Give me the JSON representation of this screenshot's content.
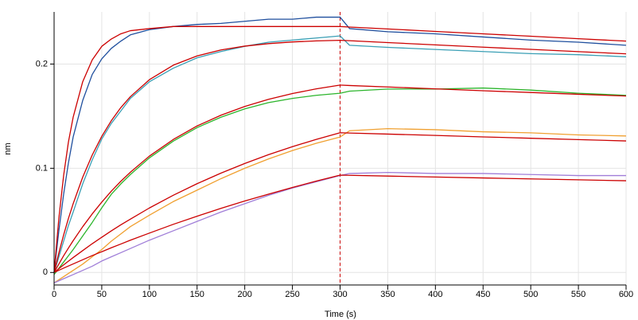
{
  "chart_data": {
    "type": "line",
    "xlabel": "Time (s)",
    "ylabel": "nm",
    "x": [
      0,
      5,
      10,
      15,
      20,
      30,
      40,
      50,
      60,
      70,
      80,
      100,
      125,
      150,
      175,
      200,
      225,
      250,
      275,
      300,
      310,
      350,
      400,
      450,
      500,
      550,
      600
    ],
    "xlim": [
      0,
      600
    ],
    "xticks": [
      0,
      50,
      100,
      150,
      200,
      250,
      300,
      350,
      400,
      450,
      500,
      550,
      600
    ],
    "ylim": [
      -0.012,
      0.25
    ],
    "yticks": [
      0,
      0.1,
      0.2
    ],
    "grid": true,
    "marker_x": 300,
    "marker_color": "#cc0000",
    "series": [
      {
        "color": "#1f4f9e",
        "values": [
          0,
          0.04,
          0.075,
          0.105,
          0.13,
          0.165,
          0.19,
          0.205,
          0.215,
          0.222,
          0.228,
          0.233,
          0.236,
          0.238,
          0.239,
          0.241,
          0.243,
          0.243,
          0.245,
          0.245,
          0.234,
          0.231,
          0.229,
          0.226,
          0.223,
          0.221,
          0.218
        ]
      },
      {
        "color": "#3a9fb5",
        "values": [
          0,
          0.015,
          0.03,
          0.045,
          0.058,
          0.085,
          0.108,
          0.128,
          0.143,
          0.155,
          0.167,
          0.183,
          0.196,
          0.206,
          0.212,
          0.217,
          0.221,
          0.223,
          0.225,
          0.227,
          0.218,
          0.216,
          0.214,
          0.212,
          0.21,
          0.209,
          0.207
        ]
      },
      {
        "color": "#2cb52c",
        "values": [
          -0.002,
          0.004,
          0.01,
          0.016,
          0.022,
          0.035,
          0.048,
          0.062,
          0.075,
          0.085,
          0.094,
          0.11,
          0.126,
          0.139,
          0.149,
          0.157,
          0.163,
          0.167,
          0.17,
          0.172,
          0.174,
          0.176,
          0.176,
          0.177,
          0.175,
          0.172,
          0.17
        ]
      },
      {
        "color": "#f0a030",
        "values": [
          -0.01,
          -0.007,
          -0.004,
          -0.001,
          0.002,
          0.008,
          0.015,
          0.022,
          0.03,
          0.037,
          0.044,
          0.055,
          0.068,
          0.079,
          0.09,
          0.1,
          0.109,
          0.117,
          0.124,
          0.13,
          0.136,
          0.138,
          0.137,
          0.135,
          0.134,
          0.132,
          0.131
        ]
      },
      {
        "color": "#a07ed8",
        "values": [
          -0.01,
          -0.008,
          -0.006,
          -0.004,
          -0.002,
          0.002,
          0.006,
          0.011,
          0.015,
          0.019,
          0.023,
          0.031,
          0.04,
          0.049,
          0.058,
          0.066,
          0.074,
          0.081,
          0.087,
          0.093,
          0.095,
          0.096,
          0.095,
          0.095,
          0.094,
          0.093,
          0.093
        ]
      },
      {
        "color": "#cc0000",
        "values": [
          0,
          0.052,
          0.093,
          0.125,
          0.149,
          0.183,
          0.204,
          0.217,
          0.224,
          0.229,
          0.232,
          0.234,
          0.236,
          0.236,
          0.236,
          0.236,
          0.236,
          0.236,
          0.236,
          0.236,
          0.2355,
          0.2337,
          0.2313,
          0.229,
          0.2267,
          0.2243,
          0.222
        ]
      },
      {
        "color": "#cc0000",
        "values": [
          0,
          0.0188,
          0.036,
          0.0517,
          0.066,
          0.0914,
          0.1127,
          0.1306,
          0.1456,
          0.1582,
          0.1687,
          0.185,
          0.1989,
          0.2078,
          0.2135,
          0.2172,
          0.2196,
          0.2212,
          0.2222,
          0.2228,
          0.2224,
          0.2206,
          0.2184,
          0.2162,
          0.2141,
          0.2119,
          0.2098
        ]
      },
      {
        "color": "#cc0000",
        "values": [
          0,
          0.0081,
          0.016,
          0.0234,
          0.0305,
          0.0439,
          0.0562,
          0.0675,
          0.078,
          0.0875,
          0.0962,
          0.1117,
          0.1276,
          0.1406,
          0.1509,
          0.1593,
          0.1662,
          0.1717,
          0.1762,
          0.1798,
          0.1794,
          0.178,
          0.1762,
          0.1744,
          0.1727,
          0.171,
          0.1693
        ]
      },
      {
        "color": "#cc0000",
        "values": [
          0,
          0.0037,
          0.0073,
          0.0108,
          0.0143,
          0.021,
          0.0276,
          0.0338,
          0.0399,
          0.0457,
          0.0512,
          0.0619,
          0.0741,
          0.0852,
          0.0953,
          0.1046,
          0.1131,
          0.1207,
          0.1277,
          0.1341,
          0.1338,
          0.1328,
          0.1315,
          0.1301,
          0.1288,
          0.1275,
          0.1262
        ]
      },
      {
        "color": "#cc0000",
        "values": [
          0,
          0.0021,
          0.0042,
          0.0062,
          0.0082,
          0.0122,
          0.0162,
          0.0199,
          0.0237,
          0.0273,
          0.031,
          0.0378,
          0.0462,
          0.054,
          0.0615,
          0.0686,
          0.0752,
          0.0816,
          0.0877,
          0.0934,
          0.0932,
          0.0925,
          0.0916,
          0.0907,
          0.0898,
          0.0889,
          0.088
        ]
      }
    ]
  }
}
